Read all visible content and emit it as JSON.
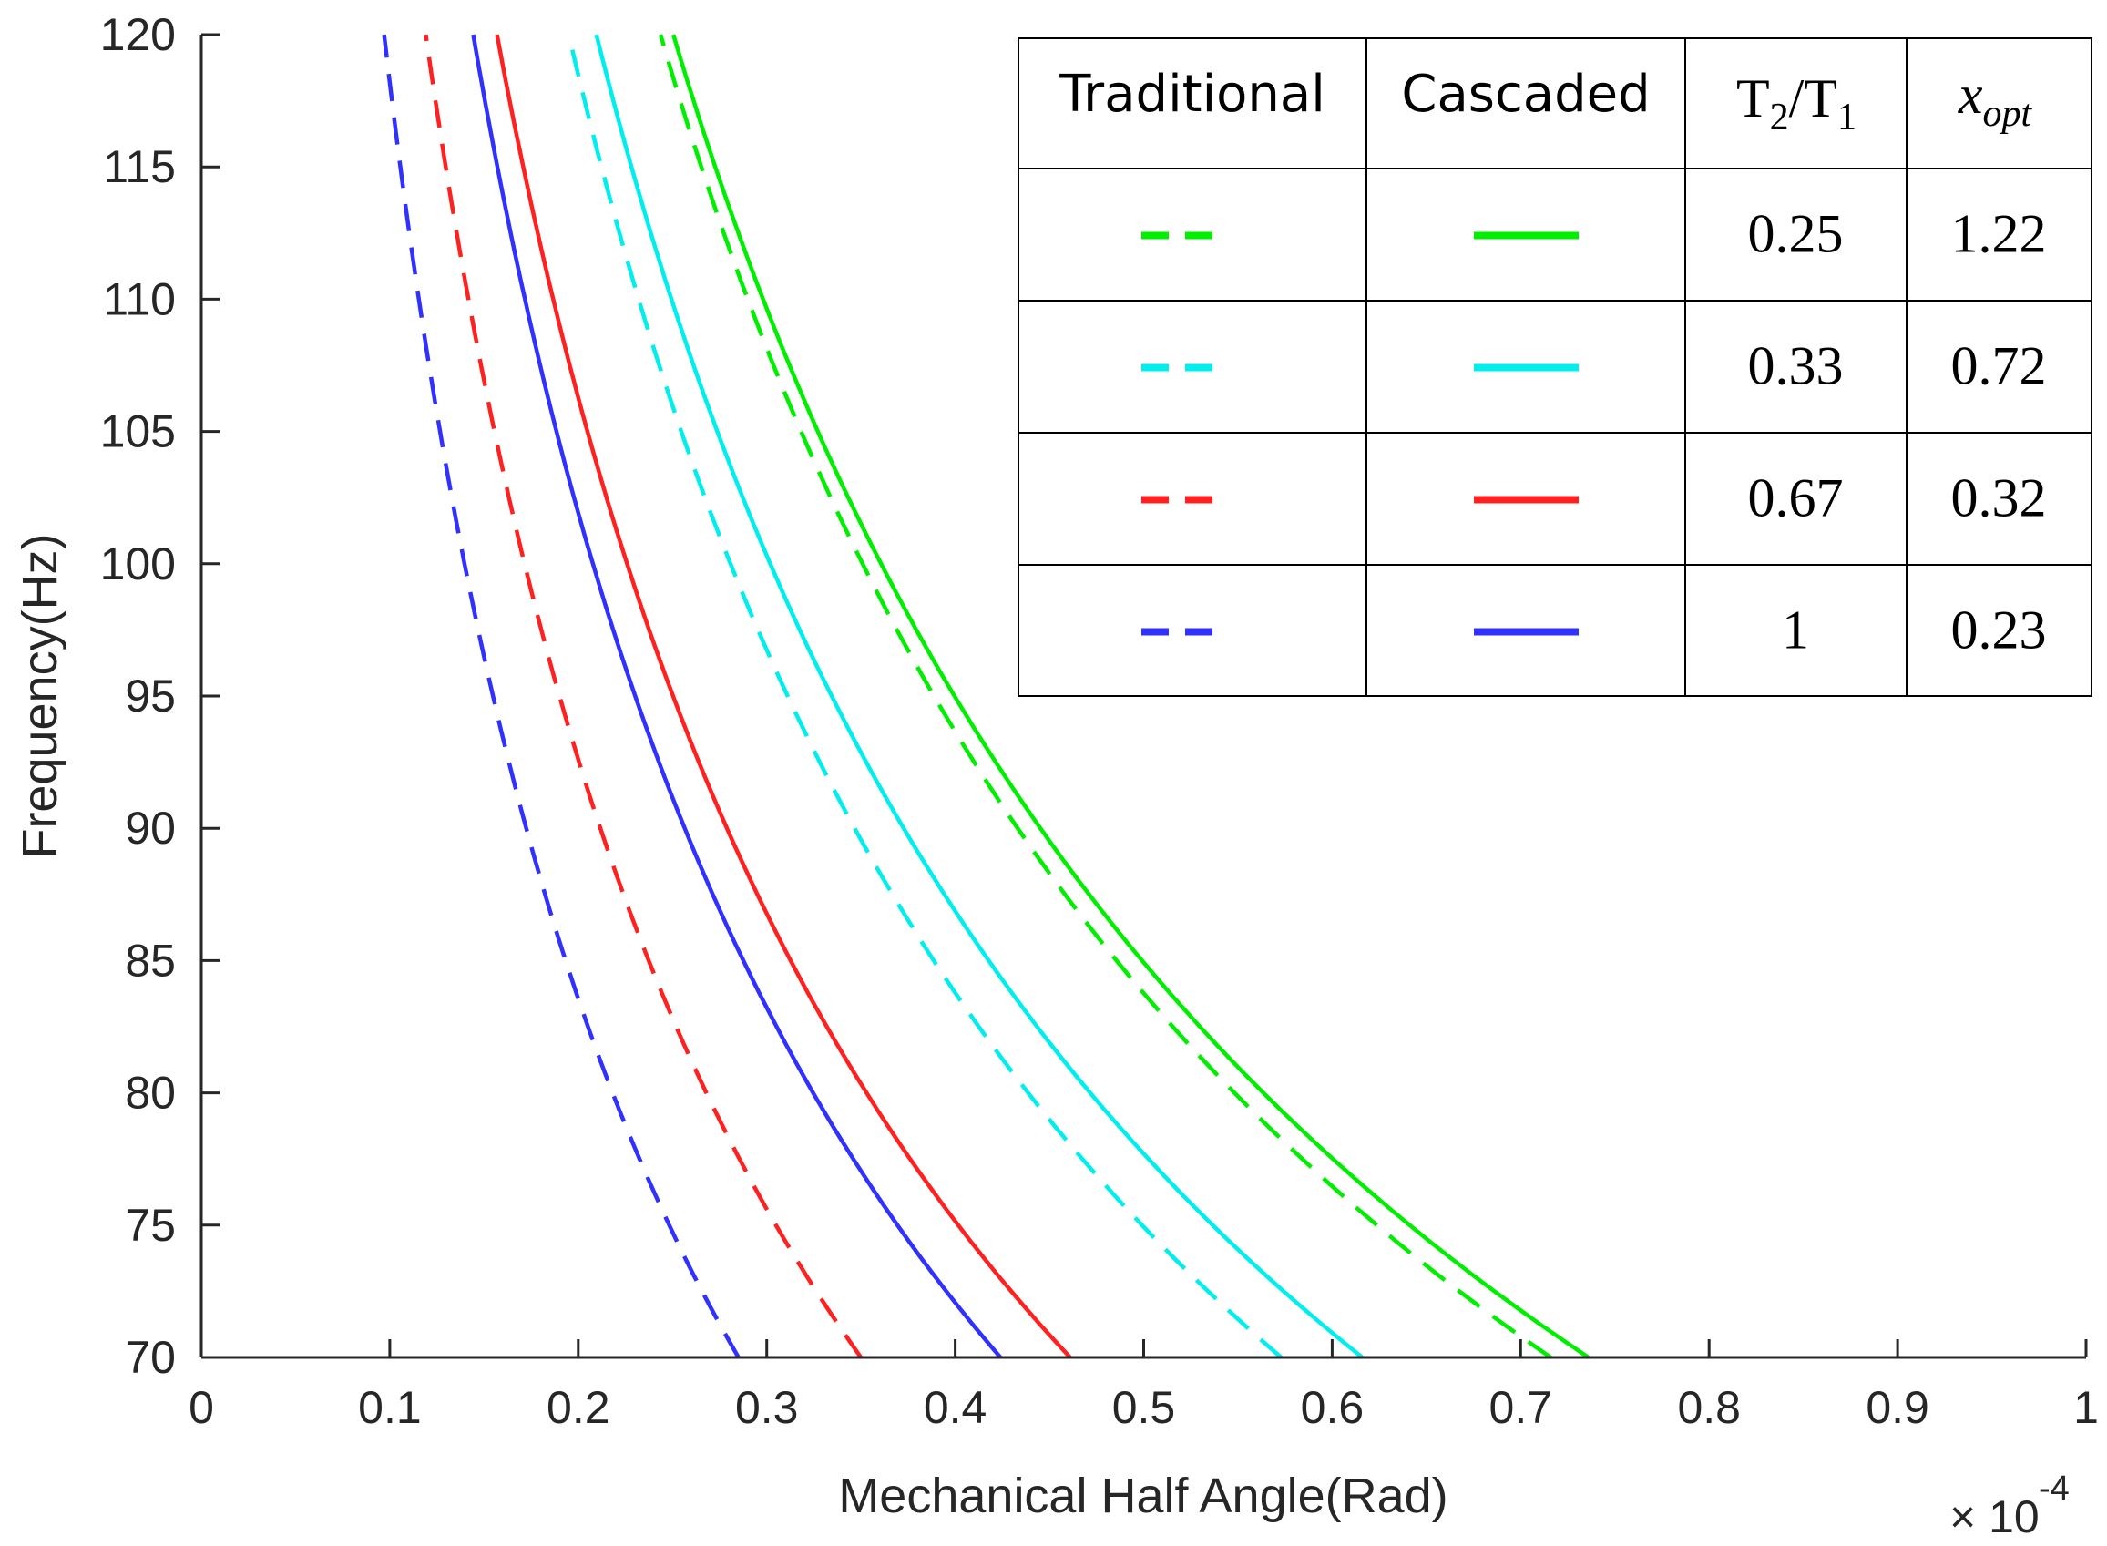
{
  "chart_data": {
    "type": "line",
    "title": "",
    "xlabel": "Mechanical Half Angle(Rad)",
    "ylabel": "Frequency(Hz)",
    "x_scale_label": "× 10",
    "x_scale_exponent": "-4",
    "xlim": [
      0,
      1
    ],
    "ylim": [
      70,
      120
    ],
    "x_ticks": [
      "0",
      "0.1",
      "0.2",
      "0.3",
      "0.4",
      "0.5",
      "0.6",
      "0.7",
      "0.8",
      "0.9",
      "1"
    ],
    "y_ticks": [
      "70",
      "75",
      "80",
      "85",
      "90",
      "95",
      "100",
      "105",
      "110",
      "115",
      "120"
    ],
    "grid": false,
    "legend_table": {
      "headers": [
        "Traditional",
        "Cascaded",
        "T2/T1",
        "x_opt"
      ],
      "header_ratio": {
        "t": "T",
        "s2": "2",
        "slash": "/T",
        "s1": "1"
      },
      "header_xopt": {
        "x": "x",
        "sub": "opt"
      },
      "rows": [
        {
          "ratio": "0.25",
          "xopt": "1.22",
          "color": "#00ee00"
        },
        {
          "ratio": "0.33",
          "xopt": "0.72",
          "color": "#00eeee"
        },
        {
          "ratio": "0.67",
          "xopt": "0.32",
          "color": "#ff2020"
        },
        {
          "ratio": "1",
          "xopt": "0.23",
          "color": "#3030ff"
        }
      ]
    },
    "series": [
      {
        "name": "Traditional, T2/T1 = 0.25",
        "style": "dashed",
        "color": "#00ee00",
        "x": [
          0.716,
          0.246
        ],
        "y": [
          70,
          120
        ]
      },
      {
        "name": "Cascaded, T2/T1 = 0.25",
        "style": "solid",
        "color": "#00ee00",
        "x": [
          0.736,
          0.251
        ],
        "y": [
          70,
          120
        ]
      },
      {
        "name": "Traditional, T2/T1 = 0.33",
        "style": "dashed",
        "color": "#00eeee",
        "x": [
          0.573,
          0.197
        ],
        "y": [
          70,
          120
        ]
      },
      {
        "name": "Cascaded, T2/T1 = 0.33",
        "style": "solid",
        "color": "#00eeee",
        "x": [
          0.616,
          0.21
        ],
        "y": [
          70,
          120
        ]
      },
      {
        "name": "Traditional, T2/T1 = 0.67",
        "style": "dashed",
        "color": "#ff2020",
        "x": [
          0.35,
          0.12
        ],
        "y": [
          70,
          120
        ]
      },
      {
        "name": "Cascaded, T2/T1 = 0.67",
        "style": "solid",
        "color": "#ff2020",
        "x": [
          0.461,
          0.157
        ],
        "y": [
          70,
          120
        ]
      },
      {
        "name": "Traditional, T2/T1 = 1",
        "style": "dashed",
        "color": "#3030ff",
        "x": [
          0.285,
          0.098
        ],
        "y": [
          70,
          120
        ]
      },
      {
        "name": "Cascaded, T2/T1 = 1",
        "style": "solid",
        "color": "#3030ff",
        "x": [
          0.424,
          0.146
        ],
        "y": [
          70,
          120
        ]
      }
    ]
  }
}
